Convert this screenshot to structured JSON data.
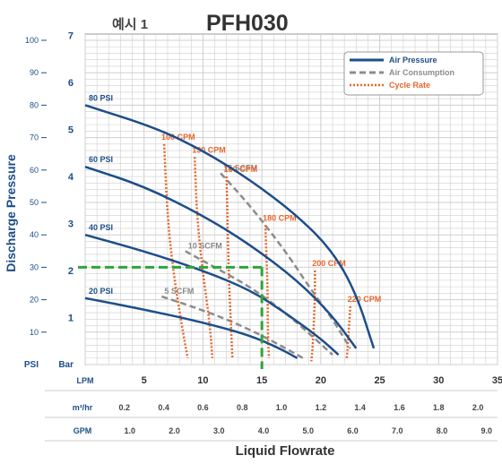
{
  "header": {
    "example_label": "예시 1",
    "model": "PFH030"
  },
  "axes": {
    "y_title": "Discharge Pressure",
    "x_title": "Liquid Flowrate",
    "psi_unit": "PSI",
    "bar_unit": "Bar",
    "lpm_unit": "LPM",
    "m3_unit": "m³/hr",
    "gpm_unit": "GPM",
    "psi_ticks": [
      "10",
      "20",
      "30",
      "40",
      "50",
      "60",
      "70",
      "80",
      "90",
      "100"
    ],
    "bar_ticks": [
      "1",
      "2",
      "3",
      "4",
      "5",
      "6",
      "7"
    ],
    "lpm_ticks": [
      "5",
      "10",
      "15",
      "20",
      "25",
      "30",
      "35"
    ],
    "m3_ticks": [
      "0.2",
      "0.4",
      "0.6",
      "0.8",
      "1.0",
      "1.2",
      "1.4",
      "1.6",
      "1.8",
      "2.0"
    ],
    "gpm_ticks": [
      "1.0",
      "2.0",
      "3.0",
      "4.0",
      "5.0",
      "6.0",
      "7.0",
      "8.0",
      "9.0"
    ]
  },
  "legend": {
    "air_pressure": "Air Pressure",
    "air_consumption": "Air Consumption",
    "cycle_rate": "Cycle Rate"
  },
  "colors": {
    "air_pressure": "#1d4e89",
    "air_consumption": "#8c8c8c",
    "cycle_rate": "#e8652a",
    "example": "#2ea43a",
    "grid": "#cfcfcf",
    "axis_text": "#1d4e89"
  },
  "chart_data": {
    "type": "line",
    "title": "PFH030",
    "xlabel": "Liquid Flowrate",
    "ylabel": "Discharge Pressure",
    "x_unit": "LPM",
    "xlim": [
      0,
      35
    ],
    "ylim_psi": [
      0,
      100
    ],
    "grid": true,
    "legend_position": "top-right",
    "air_pressure": [
      {
        "label": "80 PSI",
        "points": [
          [
            0,
            80
          ],
          [
            6,
            73
          ],
          [
            10,
            66
          ],
          [
            14,
            57
          ],
          [
            18,
            46
          ],
          [
            21,
            35
          ],
          [
            23,
            22
          ],
          [
            24.5,
            5
          ]
        ]
      },
      {
        "label": "60 PSI",
        "points": [
          [
            0,
            61
          ],
          [
            5,
            55
          ],
          [
            10,
            46
          ],
          [
            14,
            37
          ],
          [
            18,
            26
          ],
          [
            21,
            15
          ],
          [
            23,
            5
          ]
        ]
      },
      {
        "label": "40 PSI",
        "points": [
          [
            0,
            40
          ],
          [
            5,
            35
          ],
          [
            10,
            29
          ],
          [
            14,
            23
          ],
          [
            17,
            16
          ],
          [
            20,
            8
          ],
          [
            21.5,
            3
          ]
        ]
      },
      {
        "label": "20 PSI",
        "points": [
          [
            0,
            20.5
          ],
          [
            5,
            17
          ],
          [
            10,
            13
          ],
          [
            14,
            9
          ],
          [
            16.5,
            5
          ],
          [
            18,
            2
          ]
        ]
      }
    ],
    "air_consumption": [
      {
        "label": "15 SCFM",
        "points": [
          [
            11.5,
            59
          ],
          [
            14,
            49
          ],
          [
            17,
            35
          ],
          [
            19,
            24
          ],
          [
            21,
            14
          ],
          [
            22.5,
            5
          ]
        ]
      },
      {
        "label": "10 SCFM",
        "points": [
          [
            8.5,
            35
          ],
          [
            11,
            30
          ],
          [
            14,
            24
          ],
          [
            17,
            16
          ],
          [
            19.5,
            8
          ],
          [
            21,
            3
          ]
        ]
      },
      {
        "label": "5 SCFM",
        "points": [
          [
            6.5,
            21
          ],
          [
            9,
            18
          ],
          [
            12,
            14
          ],
          [
            15,
            9
          ],
          [
            17,
            5
          ],
          [
            18.5,
            2
          ]
        ]
      }
    ],
    "cycle_rate": [
      {
        "label": "100 CPM",
        "points": [
          [
            6.7,
            68
          ],
          [
            7,
            45
          ],
          [
            7.5,
            28
          ],
          [
            8.2,
            12
          ],
          [
            8.7,
            2
          ]
        ]
      },
      {
        "label": "130 CPM",
        "points": [
          [
            9.3,
            64
          ],
          [
            9.5,
            45
          ],
          [
            10,
            28
          ],
          [
            10.6,
            12
          ],
          [
            10.8,
            2
          ]
        ]
      },
      {
        "label": "160 CPM",
        "points": [
          [
            12,
            58
          ],
          [
            12.1,
            42
          ],
          [
            12.2,
            26
          ],
          [
            12.4,
            10
          ],
          [
            12.5,
            2
          ]
        ]
      },
      {
        "label": "180 CPM",
        "points": [
          [
            15.3,
            43
          ],
          [
            15.4,
            32
          ],
          [
            15.5,
            21
          ],
          [
            15.5,
            10
          ],
          [
            15.6,
            2
          ]
        ]
      },
      {
        "label": "200 CPM",
        "points": [
          [
            19.5,
            29
          ],
          [
            19.5,
            20
          ],
          [
            19.4,
            12
          ],
          [
            19.3,
            5
          ],
          [
            19.2,
            1
          ]
        ]
      },
      {
        "label": "220 CPM",
        "points": [
          [
            22.5,
            18
          ],
          [
            22.4,
            12
          ],
          [
            22.3,
            6
          ],
          [
            22.2,
            2
          ]
        ]
      }
    ],
    "example_point": {
      "flow_lpm": 15,
      "pressure_psi": 30
    }
  }
}
